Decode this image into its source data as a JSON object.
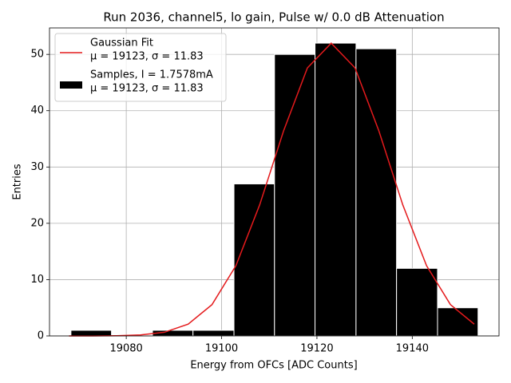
{
  "chart_data": {
    "title": "Run 2036, channel5, lo gain, Pulse w/ 0.0 dB Attenuation",
    "x_label": "Energy from OFCs [ADC Counts]",
    "y_label": "Entries",
    "xlim": [
      19063.9,
      19158.2
    ],
    "ylim": [
      0,
      54.7
    ],
    "xticks": [
      19080,
      19100,
      19120,
      19140
    ],
    "yticks": [
      0,
      10,
      20,
      30,
      40,
      50
    ],
    "grid": true,
    "legend": "upper left",
    "series": [
      {
        "type": "line",
        "name": [
          "Gaussian Fit",
          "μ = 19123, σ = 11.83"
        ],
        "color": "#e41a1c",
        "x": [
          19068,
          19073,
          19078,
          19083,
          19088,
          19093,
          19098,
          19103,
          19108,
          19113,
          19118,
          19123,
          19128,
          19133,
          19138,
          19143,
          19148,
          19153
        ],
        "values": [
          0.0,
          0.0,
          0.04,
          0.17,
          0.65,
          2.09,
          5.57,
          12.46,
          23.3,
          36.4,
          47.6,
          52,
          47.6,
          36.4,
          23.3,
          12.46,
          5.57,
          2.09
        ]
      },
      {
        "type": "histogram",
        "name": [
          "Samples, I = 1.7578mA",
          "μ = 19123, σ = 11.83"
        ],
        "color": "#000000",
        "bins": [
          19068.4,
          19076.9,
          19085.5,
          19094.0,
          19102.6,
          19111.1,
          19119.6,
          19128.2,
          19136.7,
          19145.3,
          19153.8
        ],
        "values": [
          1,
          0,
          1,
          1,
          27,
          50,
          52,
          51,
          12,
          5
        ]
      }
    ]
  }
}
